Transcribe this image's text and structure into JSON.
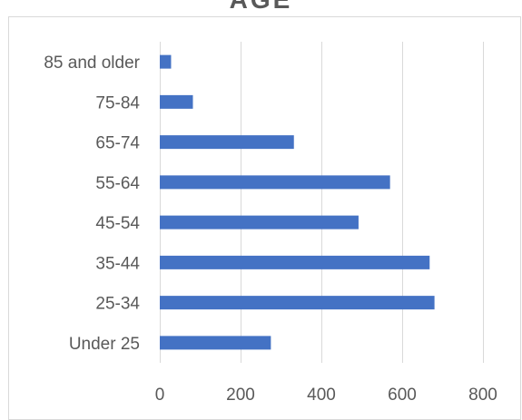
{
  "chart_data": {
    "type": "bar",
    "orientation": "horizontal",
    "title": "AGE",
    "categories": [
      "Under 25",
      "25-34",
      "35-44",
      "45-54",
      "55-64",
      "65-74",
      "75-84",
      "85 and older"
    ],
    "values": [
      275,
      680,
      668,
      492,
      570,
      332,
      82,
      28
    ],
    "xlim": [
      0,
      800
    ],
    "xticks": [
      0,
      200,
      400,
      600,
      800
    ],
    "xlabel": "",
    "ylabel": "",
    "grid": true,
    "legend": "none",
    "bar_color": "#4472C4",
    "grid_color": "#d9d9d9"
  }
}
